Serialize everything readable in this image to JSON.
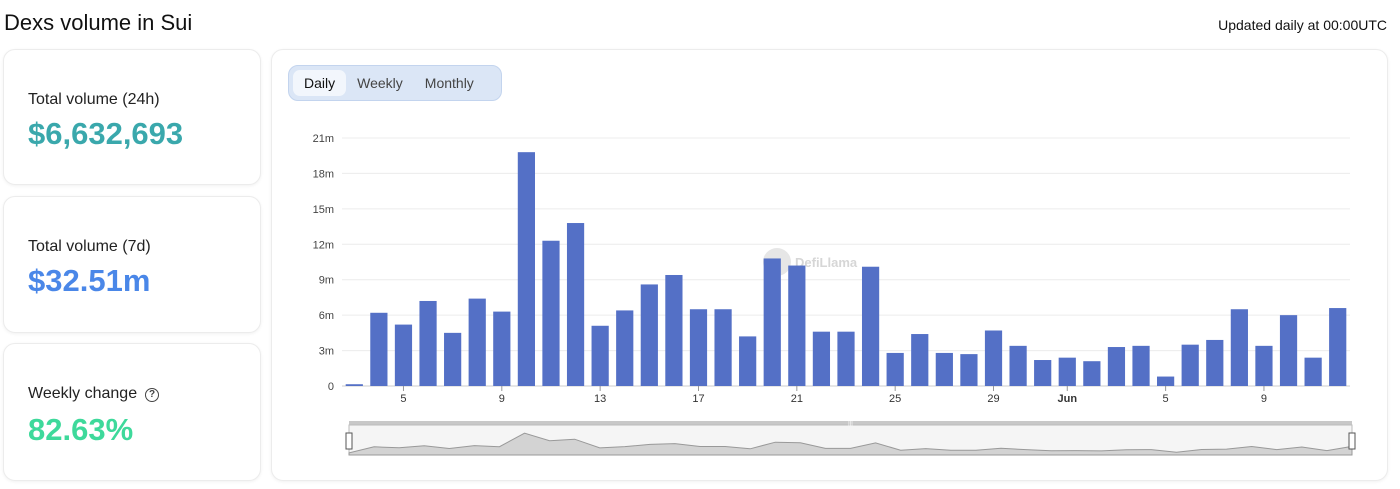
{
  "header": {
    "title": "Dexs volume in Sui",
    "updated": "Updated daily at 00:00UTC"
  },
  "stats": [
    {
      "label": "Total volume (24h)",
      "value": "$6,632,693",
      "color": "#3aa8ac"
    },
    {
      "label": "Total volume (7d)",
      "value": "$32.51m",
      "color": "#4a87e8"
    },
    {
      "label": "Weekly change",
      "value": "82.63%",
      "color": "#3ed99b",
      "help_icon": "question-circle-icon"
    }
  ],
  "tabs": {
    "items": [
      "Daily",
      "Weekly",
      "Monthly"
    ],
    "active": "Daily"
  },
  "watermark": "DefiLlama",
  "colors": {
    "bar": "#5470c6",
    "grid": "#ececec",
    "axis": "#777777"
  },
  "chart_data": {
    "type": "bar",
    "categories": [
      "",
      "",
      "5",
      "",
      "",
      "",
      "9",
      "",
      "",
      "",
      "13",
      "",
      "",
      "",
      "17",
      "",
      "",
      "",
      "21",
      "",
      "",
      "",
      "25",
      "",
      "",
      "",
      "29",
      "",
      "",
      "Jun",
      "",
      "",
      "",
      "5",
      "",
      "",
      "",
      "9",
      "",
      "",
      ""
    ],
    "values": [
      0.15,
      6.2,
      5.2,
      7.2,
      4.5,
      7.4,
      6.3,
      19.8,
      12.3,
      13.8,
      5.1,
      6.4,
      8.6,
      9.4,
      6.5,
      6.5,
      4.2,
      10.8,
      10.2,
      4.6,
      4.6,
      10.1,
      2.8,
      4.4,
      2.8,
      2.7,
      4.7,
      3.4,
      2.2,
      2.4,
      2.1,
      3.3,
      3.4,
      0.8,
      3.5,
      3.9,
      6.5,
      3.4,
      6.0,
      2.4,
      6.6
    ],
    "ylim": [
      0,
      21
    ],
    "yticks": [
      "0",
      "3m",
      "6m",
      "9m",
      "12m",
      "15m",
      "18m",
      "21m"
    ],
    "bold_ticks": [
      "Jun"
    ],
    "grid": true,
    "legend": "none"
  }
}
